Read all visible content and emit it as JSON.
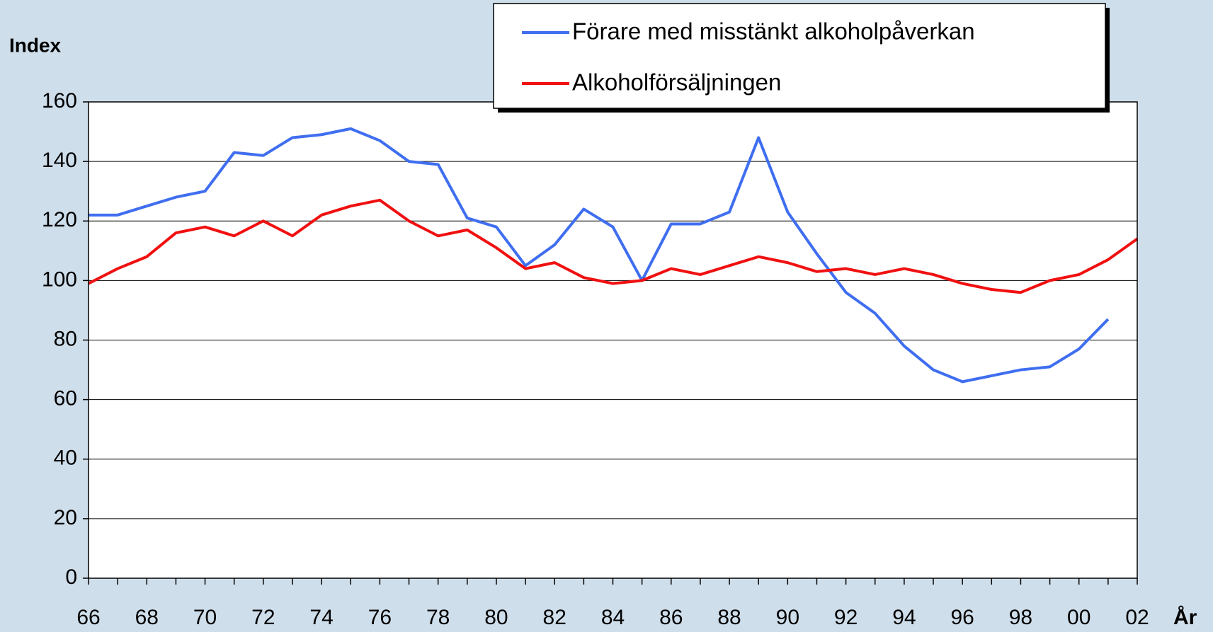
{
  "chart_data": {
    "type": "line",
    "ylabel": "Index",
    "xlabel": "År",
    "categories": [
      "66",
      null,
      "68",
      null,
      "70",
      null,
      "72",
      null,
      "74",
      null,
      "76",
      null,
      "78",
      null,
      "80",
      null,
      "82",
      null,
      "84",
      null,
      "86",
      null,
      "88",
      null,
      "90",
      null,
      "92",
      null,
      "94",
      null,
      "96",
      null,
      "98",
      null,
      "00",
      null,
      "02"
    ],
    "series": [
      {
        "name": "Förare med misstänkt alkoholpåverkan",
        "color": "#3f6ef0",
        "values": [
          122,
          122,
          125,
          128,
          130,
          143,
          142,
          148,
          149,
          151,
          147,
          140,
          139,
          121,
          118,
          105,
          112,
          124,
          118,
          100,
          119,
          119,
          123,
          148,
          123,
          109,
          96,
          89,
          78,
          70,
          66,
          68,
          70,
          71,
          77,
          87,
          null
        ]
      },
      {
        "name": "Alkoholförsäljningen",
        "color": "#f01010",
        "values": [
          99,
          104,
          108,
          116,
          118,
          115,
          120,
          115,
          122,
          125,
          127,
          120,
          115,
          117,
          111,
          104,
          106,
          101,
          99,
          100,
          104,
          102,
          105,
          108,
          106,
          103,
          104,
          102,
          104,
          102,
          99,
          97,
          96,
          100,
          102,
          107,
          114
        ]
      }
    ],
    "ylim": [
      0,
      160
    ],
    "yticks": [
      0,
      20,
      40,
      60,
      80,
      100,
      120,
      140,
      160
    ],
    "grid": true
  }
}
